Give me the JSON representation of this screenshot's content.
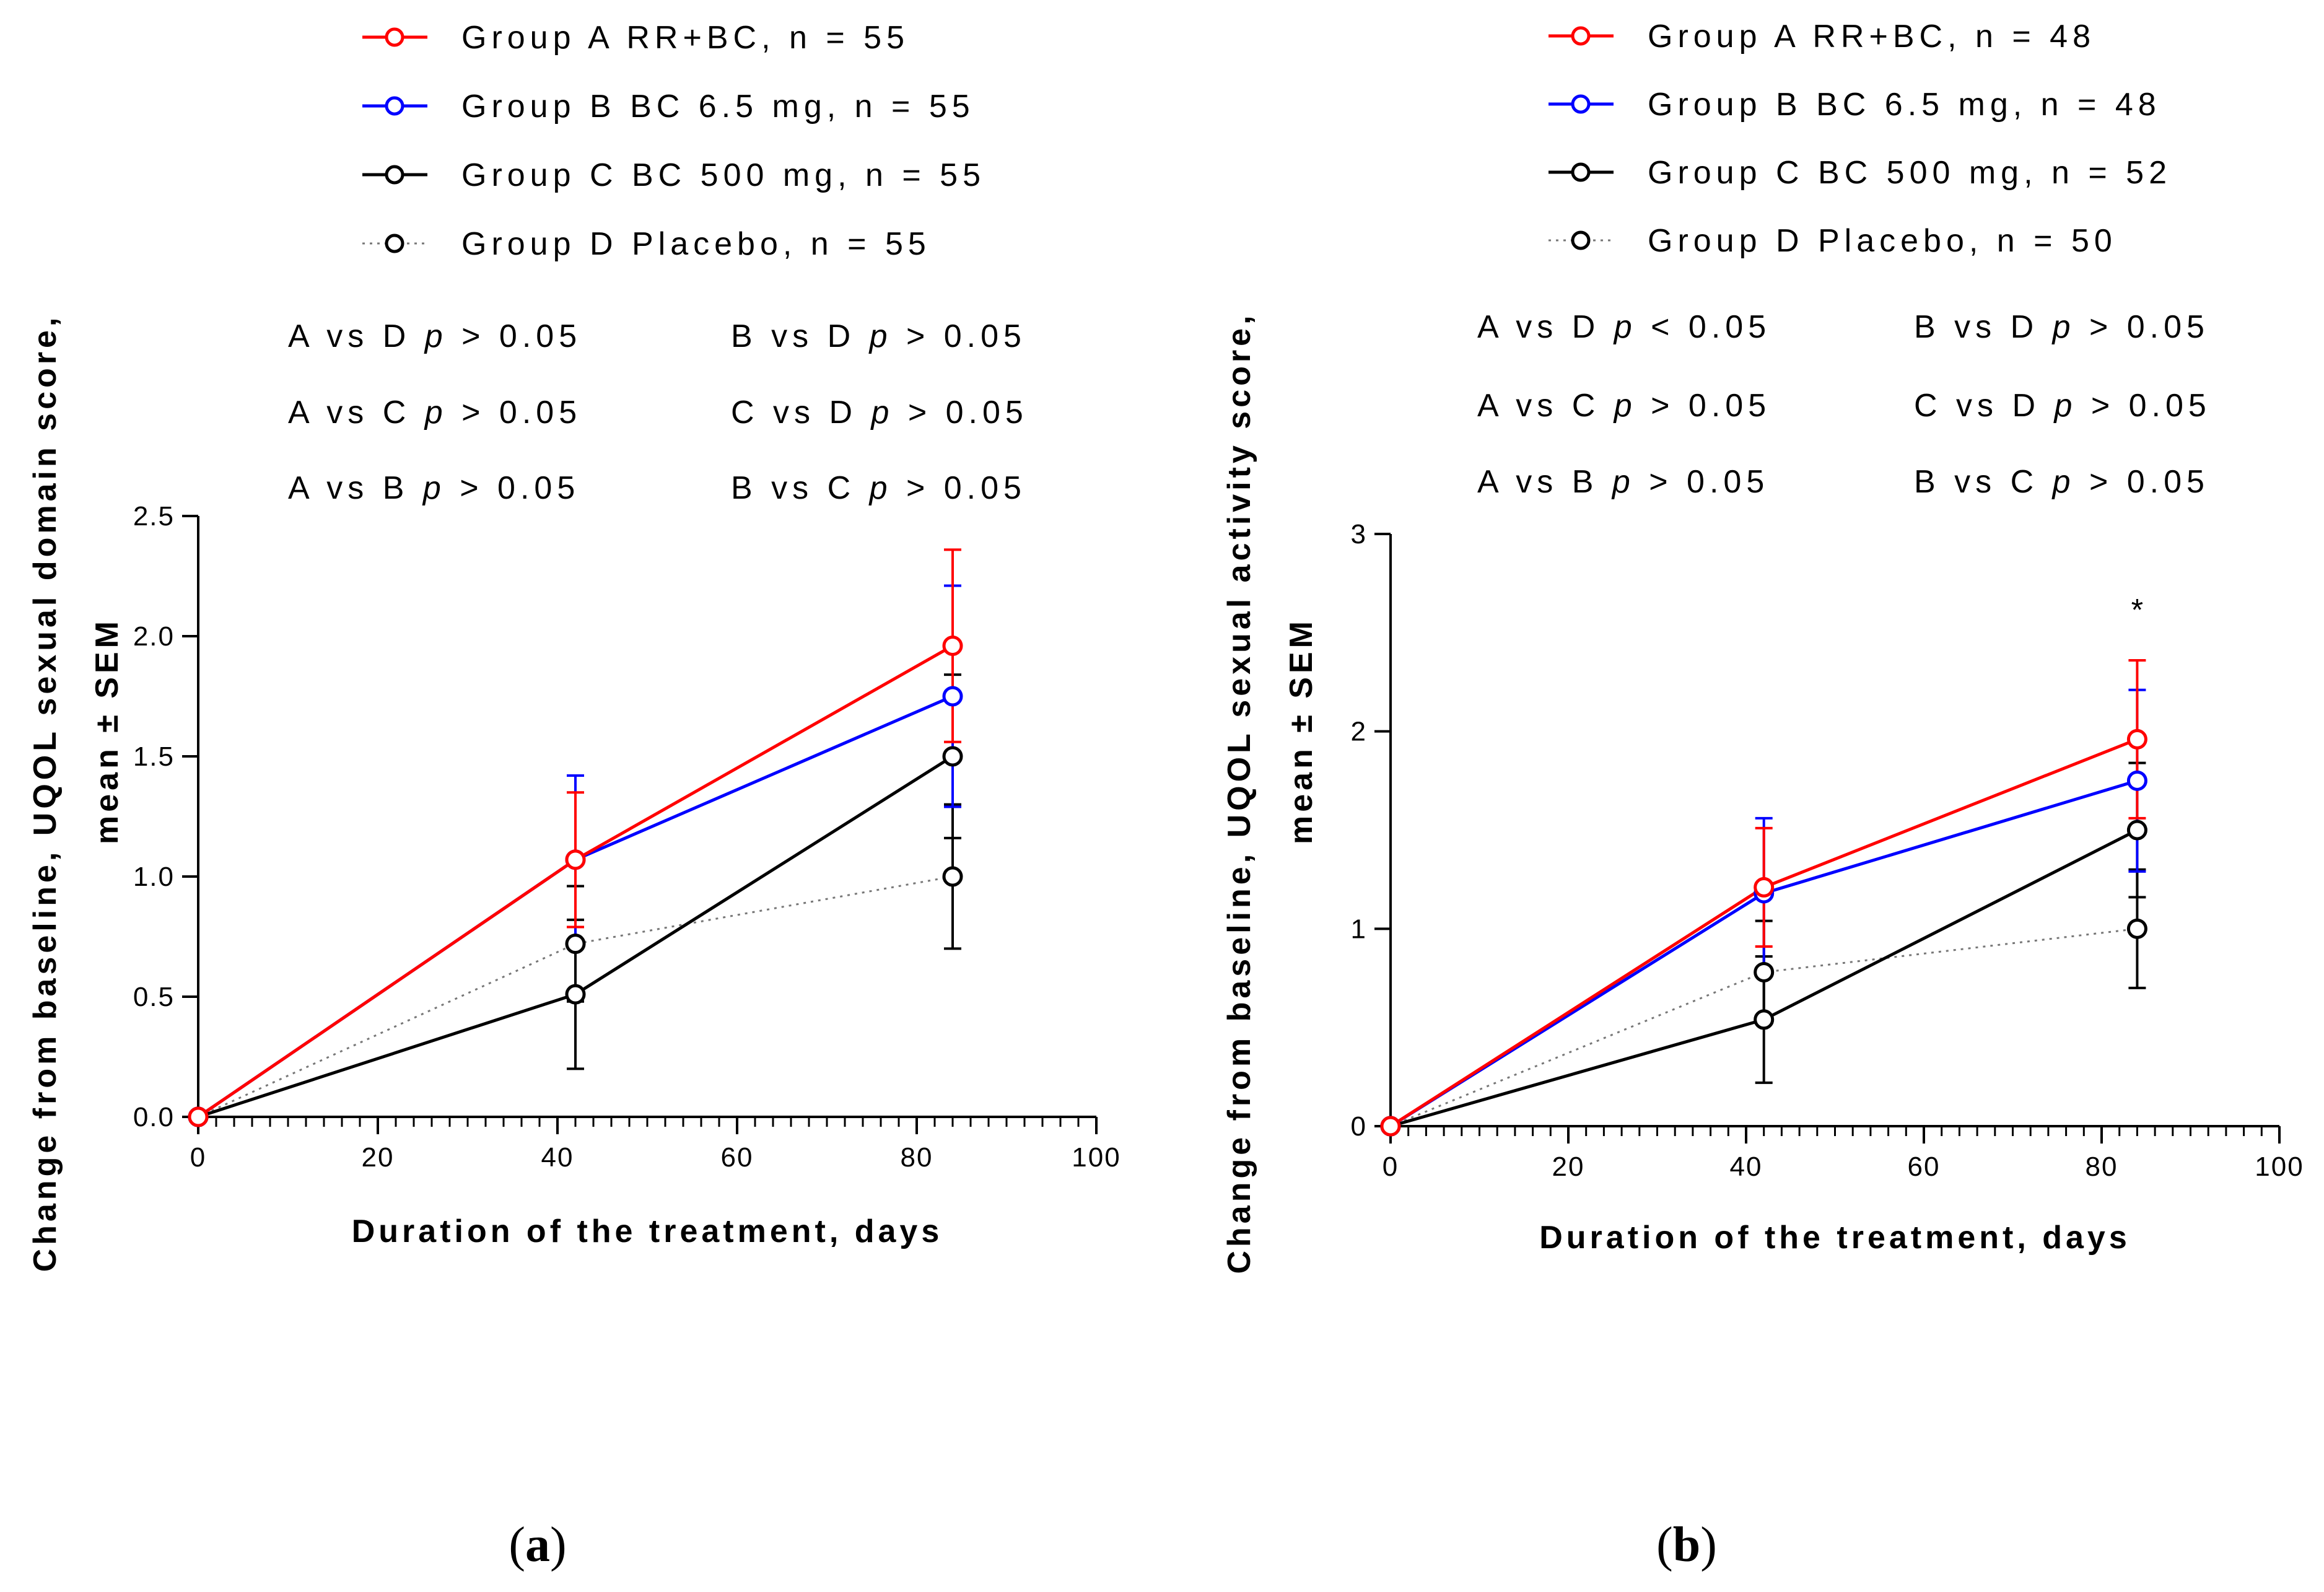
{
  "colors": {
    "groupA": "#ff0000",
    "groupB": "#0000ff",
    "groupC": "#000000",
    "groupD": "#000000"
  },
  "chart_data": [
    {
      "type": "line",
      "panel_label": "(a)",
      "panel_letter": "a",
      "xlabel": "Duration of the treatment, days",
      "ylabel_line1": "Change from baseline, UQOL sexual domain score,",
      "ylabel_line2": "mean ± SEM",
      "xlim": [
        0,
        100
      ],
      "ylim": [
        0,
        2.5
      ],
      "xticks": [
        0,
        20,
        40,
        60,
        80,
        100
      ],
      "xtick_labels": [
        "0",
        "20",
        "40",
        "60",
        "80",
        "100"
      ],
      "yticks": [
        0,
        0.5,
        1,
        1.5,
        2,
        2.5
      ],
      "ytick_labels": [
        "0.0",
        "0.5",
        "1.0",
        "1.5",
        "2.0",
        "2.5"
      ],
      "legend": [
        "Group A RR+BC, n = 55",
        "Group B BC 6.5 mg, n = 55",
        "Group C BC 500 mg, n = 55",
        "Group D Placebo, n = 55"
      ],
      "comparisons": [
        "A vs D p > 0.05",
        "B vs D p > 0.05",
        "A vs C p > 0.05",
        "C vs D p > 0.05",
        "A vs B p > 0.05",
        "B vs C p > 0.05"
      ],
      "annotations": [],
      "series": [
        {
          "name": "Group A RR+BC, n = 55",
          "color": "#ff0000",
          "dash": "solid",
          "x": [
            0,
            42,
            84
          ],
          "y": [
            0,
            1.07,
            1.96
          ],
          "err": [
            0,
            0.28,
            0.4
          ]
        },
        {
          "name": "Group B BC 6.5 mg, n = 55",
          "color": "#0000ff",
          "dash": "solid",
          "x": [
            0,
            42,
            84
          ],
          "y": [
            0,
            1.07,
            1.75
          ],
          "err": [
            0,
            0.35,
            0.46
          ]
        },
        {
          "name": "Group C BC 500 mg, n = 55",
          "color": "#000000",
          "dash": "solid",
          "x": [
            0,
            42,
            84
          ],
          "y": [
            0,
            0.51,
            1.5
          ],
          "err": [
            0,
            0.31,
            0.34
          ]
        },
        {
          "name": "Group D Placebo, n = 55",
          "color": "#000000",
          "dash": "dotted",
          "x": [
            0,
            42,
            84
          ],
          "y": [
            0,
            0.72,
            1.0
          ],
          "err": [
            0,
            0.24,
            0.3
          ]
        }
      ]
    },
    {
      "type": "line",
      "panel_label": "(b)",
      "panel_letter": "b",
      "xlabel": "Duration of the treatment, days",
      "ylabel_line1": "Change from baseline, UQOL sexual activity score,",
      "ylabel_line2": "mean ± SEM",
      "xlim": [
        0,
        100
      ],
      "ylim": [
        0,
        3
      ],
      "xticks": [
        0,
        20,
        40,
        60,
        80,
        100
      ],
      "xtick_labels": [
        "0",
        "20",
        "40",
        "60",
        "80",
        "100"
      ],
      "yticks": [
        0,
        1,
        2,
        3
      ],
      "ytick_labels": [
        "0",
        "1",
        "2",
        "3"
      ],
      "legend": [
        "Group A RR+BC, n = 48",
        "Group B BC 6.5 mg, n = 48",
        "Group C BC 500 mg, n = 52",
        "Group D Placebo, n = 50"
      ],
      "comparisons": [
        "A vs D p < 0.05",
        "B vs D p > 0.05",
        "A vs C p > 0.05",
        "C vs D p > 0.05",
        "A vs B p > 0.05",
        "B vs C p > 0.05"
      ],
      "annotations": [
        {
          "text": "*",
          "x": 84,
          "y": 2.5
        }
      ],
      "series": [
        {
          "name": "Group A RR+BC, n = 48",
          "color": "#ff0000",
          "dash": "solid",
          "x": [
            0,
            42,
            84
          ],
          "y": [
            0,
            1.21,
            1.96
          ],
          "err": [
            0,
            0.3,
            0.4
          ]
        },
        {
          "name": "Group B BC 6.5 mg, n = 48",
          "color": "#0000ff",
          "dash": "solid",
          "x": [
            0,
            42,
            84
          ],
          "y": [
            0,
            1.18,
            1.75
          ],
          "err": [
            0,
            0.38,
            0.46
          ]
        },
        {
          "name": "Group C BC 500 mg, n = 52",
          "color": "#000000",
          "dash": "solid",
          "x": [
            0,
            42,
            84
          ],
          "y": [
            0,
            0.54,
            1.5
          ],
          "err": [
            0,
            0.32,
            0.34
          ]
        },
        {
          "name": "Group D Placebo, n = 50",
          "color": "#000000",
          "dash": "dotted",
          "x": [
            0,
            42,
            84
          ],
          "y": [
            0,
            0.78,
            1.0
          ],
          "err": [
            0,
            0.26,
            0.3
          ]
        }
      ]
    }
  ]
}
